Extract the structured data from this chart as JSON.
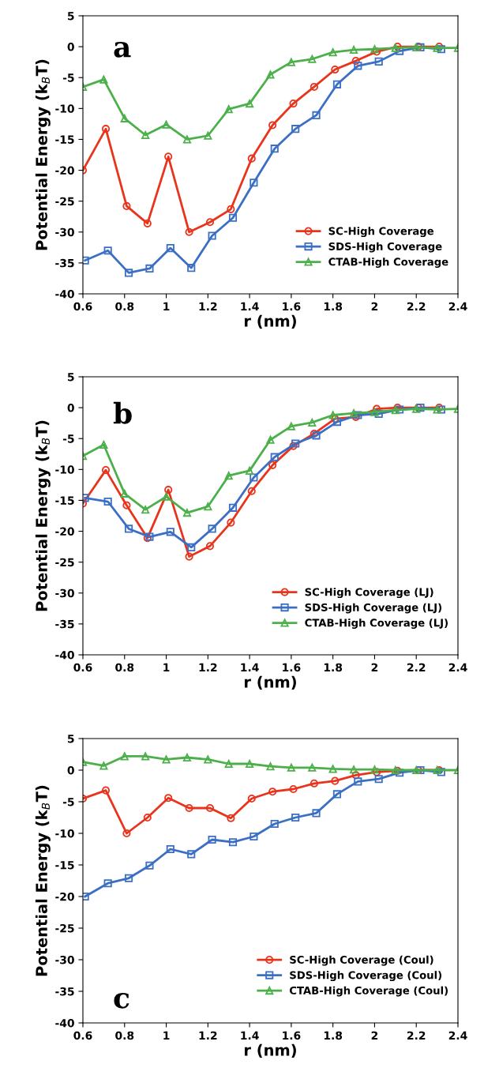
{
  "chart_data": [
    {
      "type": "line",
      "xlabel": "r (nm)",
      "ylabel": "Potential Energy (k$_{B}$T)",
      "xlim": [
        0.6,
        2.4
      ],
      "ylim": [
        -40,
        5
      ],
      "xticks": [
        0.6,
        0.8,
        1,
        1.2,
        1.4,
        1.6,
        1.8,
        2,
        2.2,
        2.4
      ],
      "yticks": [
        -40,
        -35,
        -30,
        -25,
        -20,
        -15,
        -10,
        -5,
        0,
        5
      ],
      "grid": false,
      "legend": "bottom right",
      "line_style": "solid",
      "annotations": [
        "a"
      ],
      "series": [
        {
          "name": "SC-High Coverage",
          "color": "#e8341c",
          "marker": "circle",
          "x": [
            0.6,
            0.71,
            0.81,
            0.91,
            1.01,
            1.11,
            1.21,
            1.31,
            1.41,
            1.51,
            1.61,
            1.71,
            1.81,
            1.91,
            2.01,
            2.11,
            2.21,
            2.31
          ],
          "values": [
            -20,
            -13.3,
            -25.8,
            -28.6,
            -17.8,
            -30,
            -28.4,
            -26.3,
            -18.1,
            -12.7,
            -9.2,
            -6.5,
            -3.7,
            -2.3,
            -0.8,
            0,
            0,
            0
          ]
        },
        {
          "name": "SDS-High Coverage",
          "color": "#3a6fc4",
          "marker": "square",
          "x": [
            0.61,
            0.72,
            0.82,
            0.92,
            1.02,
            1.12,
            1.22,
            1.32,
            1.42,
            1.52,
            1.62,
            1.72,
            1.82,
            1.92,
            2.02,
            2.12,
            2.22,
            2.32
          ],
          "values": [
            -34.6,
            -33,
            -36.6,
            -35.9,
            -32.6,
            -35.8,
            -30.6,
            -27.7,
            -22,
            -16.5,
            -13.3,
            -11.1,
            -6.1,
            -3.1,
            -2.4,
            -0.7,
            -0.1,
            -0.4
          ]
        },
        {
          "name": "CTAB-High Coverage",
          "color": "#4cb04a",
          "marker": "triangle",
          "x": [
            0.6,
            0.7,
            0.8,
            0.9,
            1.0,
            1.1,
            1.2,
            1.3,
            1.4,
            1.5,
            1.6,
            1.7,
            1.8,
            1.9,
            2.0,
            2.1,
            2.2,
            2.3,
            2.4
          ],
          "values": [
            -6.5,
            -5.3,
            -11.6,
            -14.3,
            -12.6,
            -15,
            -14.4,
            -10.1,
            -9.2,
            -4.5,
            -2.5,
            -2,
            -0.9,
            -0.5,
            -0.4,
            -0.2,
            -0.1,
            -0.2,
            -0.2
          ]
        }
      ]
    },
    {
      "type": "line",
      "xlabel": "r (nm)",
      "ylabel": "Potential Energy (k$_{B}$T)",
      "xlim": [
        0.6,
        2.4
      ],
      "ylim": [
        -40,
        5
      ],
      "xticks": [
        0.6,
        0.8,
        1,
        1.2,
        1.4,
        1.6,
        1.8,
        2,
        2.2,
        2.4
      ],
      "yticks": [
        -40,
        -35,
        -30,
        -25,
        -20,
        -15,
        -10,
        -5,
        0,
        5
      ],
      "grid": false,
      "legend": "bottom right",
      "line_style": "solid",
      "annotations": [
        "b"
      ],
      "series": [
        {
          "name": "SC-High Coverage (LJ)",
          "color": "#e8341c",
          "marker": "circle",
          "x": [
            0.6,
            0.71,
            0.81,
            0.91,
            1.01,
            1.11,
            1.21,
            1.31,
            1.41,
            1.51,
            1.61,
            1.71,
            1.81,
            1.91,
            2.01,
            2.11,
            2.21,
            2.31
          ],
          "values": [
            -15.5,
            -10.1,
            -15.8,
            -21.1,
            -13.3,
            -24.1,
            -22.4,
            -18.6,
            -13.5,
            -9.3,
            -6.2,
            -4.2,
            -1.8,
            -1.5,
            -0.2,
            0,
            0,
            0
          ]
        },
        {
          "name": "SDS-High Coverage (LJ)",
          "color": "#3a6fc4",
          "marker": "square",
          "x": [
            0.61,
            0.72,
            0.82,
            0.92,
            1.02,
            1.12,
            1.22,
            1.32,
            1.42,
            1.52,
            1.62,
            1.72,
            1.82,
            1.92,
            2.02,
            2.12,
            2.22,
            2.32
          ],
          "values": [
            -14.6,
            -15.2,
            -19.6,
            -20.9,
            -20.1,
            -22.6,
            -19.6,
            -16.2,
            -11.3,
            -8,
            -5.8,
            -4.5,
            -2.3,
            -1.2,
            -1,
            -0.3,
            0,
            -0.3
          ]
        },
        {
          "name": "CTAB-High Coverage (LJ)",
          "color": "#4cb04a",
          "marker": "triangle",
          "x": [
            0.6,
            0.7,
            0.8,
            0.9,
            1.0,
            1.1,
            1.2,
            1.3,
            1.4,
            1.5,
            1.6,
            1.7,
            1.8,
            1.9,
            2.0,
            2.1,
            2.2,
            2.3,
            2.4
          ],
          "values": [
            -7.8,
            -6,
            -13.9,
            -16.5,
            -14.4,
            -17,
            -16,
            -11,
            -10.2,
            -5.2,
            -3,
            -2.4,
            -1.2,
            -0.9,
            -0.7,
            -0.4,
            -0.2,
            -0.3,
            -0.2
          ]
        }
      ]
    },
    {
      "type": "line",
      "xlabel": "r (nm)",
      "ylabel": "Potential Energy (k$_{B}$T)",
      "xlim": [
        0.6,
        2.4
      ],
      "ylim": [
        -40,
        5
      ],
      "xticks": [
        0.6,
        0.8,
        1,
        1.2,
        1.4,
        1.6,
        1.8,
        2,
        2.2,
        2.4
      ],
      "yticks": [
        -40,
        -35,
        -30,
        -25,
        -20,
        -15,
        -10,
        -5,
        0,
        5
      ],
      "grid": false,
      "legend": "bottom right",
      "line_style": "solid",
      "annotations": [
        "c"
      ],
      "series": [
        {
          "name": "SC-High Coverage (Coul)",
          "color": "#e8341c",
          "marker": "circle",
          "x": [
            0.6,
            0.71,
            0.81,
            0.91,
            1.01,
            1.11,
            1.21,
            1.31,
            1.41,
            1.51,
            1.61,
            1.71,
            1.81,
            1.91,
            2.01,
            2.11,
            2.21,
            2.31
          ],
          "values": [
            -4.5,
            -3.2,
            -10,
            -7.5,
            -4.4,
            -6,
            -6,
            -7.6,
            -4.5,
            -3.4,
            -3,
            -2.1,
            -1.7,
            -0.8,
            -0.3,
            -0.1,
            0,
            0
          ]
        },
        {
          "name": "SDS-High Coverage (Coul)",
          "color": "#3a6fc4",
          "marker": "square",
          "x": [
            0.61,
            0.72,
            0.82,
            0.92,
            1.02,
            1.12,
            1.22,
            1.32,
            1.42,
            1.52,
            1.62,
            1.72,
            1.82,
            1.92,
            2.02,
            2.12,
            2.22,
            2.32
          ],
          "values": [
            -20,
            -17.9,
            -17.1,
            -15.1,
            -12.5,
            -13.3,
            -11,
            -11.4,
            -10.5,
            -8.5,
            -7.5,
            -6.8,
            -3.8,
            -1.8,
            -1.4,
            -0.4,
            0,
            -0.3
          ]
        },
        {
          "name": "CTAB-High Coverage (Coul)",
          "color": "#4cb04a",
          "marker": "triangle",
          "x": [
            0.6,
            0.7,
            0.8,
            0.9,
            1.0,
            1.1,
            1.2,
            1.3,
            1.4,
            1.5,
            1.6,
            1.7,
            1.8,
            1.9,
            2.0,
            2.1,
            2.2,
            2.3,
            2.4
          ],
          "values": [
            1.3,
            0.7,
            2.2,
            2.2,
            1.7,
            2,
            1.7,
            1,
            1,
            0.6,
            0.4,
            0.4,
            0.2,
            0.1,
            0.1,
            0,
            0,
            0,
            0
          ]
        }
      ]
    }
  ]
}
